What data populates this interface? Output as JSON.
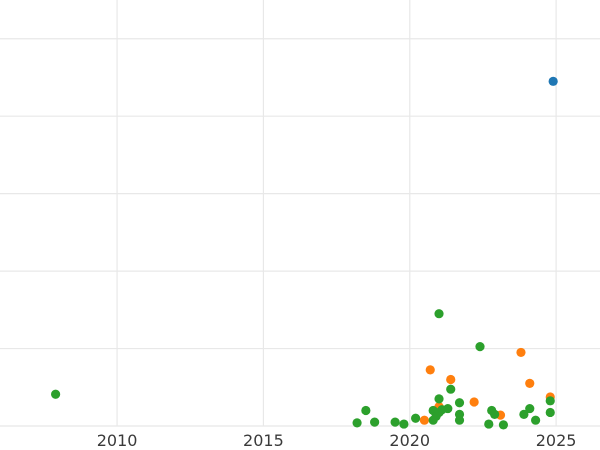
{
  "chart_data": {
    "type": "scatter",
    "title": "",
    "xlabel": "",
    "ylabel": "",
    "grid": true,
    "legend": "none",
    "x_ticks": [
      "2010",
      "2015",
      "2020",
      "2025"
    ],
    "xlim": [
      2006.0,
      2026.5
    ],
    "ylim": [
      0.0,
      11.0
    ],
    "y_gridlines": [
      0.0,
      2.0,
      4.0,
      6.0,
      8.0,
      10.0
    ],
    "series": [
      {
        "color": "#1f77b4",
        "points": [
          {
            "x": 2024.9,
            "y": 8.9
          }
        ]
      },
      {
        "color": "#ff7f0e",
        "points": [
          {
            "x": 2020.7,
            "y": 1.45
          },
          {
            "x": 2021.4,
            "y": 1.2
          },
          {
            "x": 2023.8,
            "y": 1.9
          },
          {
            "x": 2024.1,
            "y": 1.1
          },
          {
            "x": 2024.8,
            "y": 0.75
          },
          {
            "x": 2022.2,
            "y": 0.62
          },
          {
            "x": 2021.0,
            "y": 0.5
          },
          {
            "x": 2020.5,
            "y": 0.15
          },
          {
            "x": 2023.1,
            "y": 0.28
          }
        ]
      },
      {
        "color": "#2ca02c",
        "points": [
          {
            "x": 2007.9,
            "y": 0.82
          },
          {
            "x": 2018.2,
            "y": 0.08
          },
          {
            "x": 2018.5,
            "y": 0.4
          },
          {
            "x": 2018.8,
            "y": 0.1
          },
          {
            "x": 2019.5,
            "y": 0.1
          },
          {
            "x": 2019.8,
            "y": 0.05
          },
          {
            "x": 2020.2,
            "y": 0.2
          },
          {
            "x": 2020.8,
            "y": 0.15
          },
          {
            "x": 2020.8,
            "y": 0.4
          },
          {
            "x": 2020.9,
            "y": 0.25
          },
          {
            "x": 2021.0,
            "y": 0.35
          },
          {
            "x": 2021.1,
            "y": 0.42
          },
          {
            "x": 2021.3,
            "y": 0.45
          },
          {
            "x": 2021.0,
            "y": 0.7
          },
          {
            "x": 2021.4,
            "y": 0.95
          },
          {
            "x": 2021.7,
            "y": 0.6
          },
          {
            "x": 2021.7,
            "y": 0.3
          },
          {
            "x": 2021.7,
            "y": 0.15
          },
          {
            "x": 2021.0,
            "y": 2.9
          },
          {
            "x": 2022.4,
            "y": 2.05
          },
          {
            "x": 2022.7,
            "y": 0.05
          },
          {
            "x": 2022.8,
            "y": 0.4
          },
          {
            "x": 2022.9,
            "y": 0.3
          },
          {
            "x": 2023.2,
            "y": 0.03
          },
          {
            "x": 2023.9,
            "y": 0.3
          },
          {
            "x": 2024.1,
            "y": 0.45
          },
          {
            "x": 2024.3,
            "y": 0.15
          },
          {
            "x": 2024.8,
            "y": 0.35
          },
          {
            "x": 2024.8,
            "y": 0.65
          }
        ]
      }
    ]
  }
}
